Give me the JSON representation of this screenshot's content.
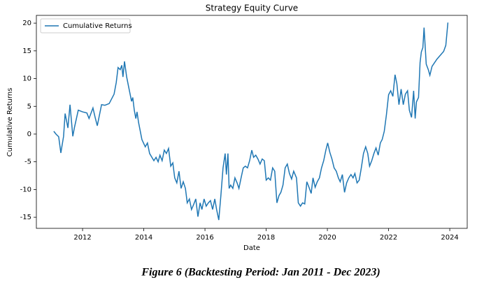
{
  "chart_data": {
    "type": "line",
    "title": "Strategy Equity Curve",
    "x_label": "Date",
    "y_label": "Cumulative Returns",
    "caption": "Figure 6 (Backtesting Period: Jan 2011 - Dec 2023)",
    "x": [
      2011.06,
      2011.13,
      2011.22,
      2011.29,
      2011.38,
      2011.43,
      2011.52,
      2011.59,
      2011.68,
      2011.73,
      2011.86,
      2012.0,
      2012.14,
      2012.21,
      2012.34,
      2012.41,
      2012.48,
      2012.62,
      2012.73,
      2012.87,
      2013.03,
      2013.1,
      2013.16,
      2013.23,
      2013.28,
      2013.32,
      2013.37,
      2013.44,
      2013.51,
      2013.6,
      2013.64,
      2013.69,
      2013.74,
      2013.78,
      2013.83,
      2013.94,
      2014.05,
      2014.12,
      2014.19,
      2014.33,
      2014.4,
      2014.47,
      2014.53,
      2014.6,
      2014.67,
      2014.74,
      2014.81,
      2014.88,
      2014.95,
      2015.01,
      2015.08,
      2015.15,
      2015.22,
      2015.29,
      2015.36,
      2015.42,
      2015.49,
      2015.56,
      2015.63,
      2015.7,
      2015.77,
      2015.84,
      2015.9,
      2015.97,
      2016.04,
      2016.11,
      2016.18,
      2016.25,
      2016.32,
      2016.38,
      2016.45,
      2016.52,
      2016.59,
      2016.66,
      2016.7,
      2016.75,
      2016.79,
      2016.84,
      2016.91,
      2016.98,
      2017.05,
      2017.11,
      2017.18,
      2017.25,
      2017.32,
      2017.39,
      2017.46,
      2017.53,
      2017.59,
      2017.66,
      2017.73,
      2017.8,
      2017.87,
      2017.94,
      2018.0,
      2018.07,
      2018.14,
      2018.21,
      2018.28,
      2018.35,
      2018.42,
      2018.48,
      2018.55,
      2018.62,
      2018.69,
      2018.76,
      2018.83,
      2018.9,
      2018.99,
      2019.05,
      2019.12,
      2019.19,
      2019.26,
      2019.33,
      2019.4,
      2019.47,
      2019.53,
      2019.6,
      2019.67,
      2019.74,
      2019.81,
      2019.88,
      2019.95,
      2020.01,
      2020.08,
      2020.15,
      2020.22,
      2020.29,
      2020.36,
      2020.42,
      2020.49,
      2020.56,
      2020.63,
      2020.7,
      2020.77,
      2020.84,
      2020.9,
      2020.97,
      2021.04,
      2021.11,
      2021.18,
      2021.25,
      2021.32,
      2021.38,
      2021.45,
      2021.52,
      2021.59,
      2021.66,
      2021.73,
      2021.79,
      2021.86,
      2021.93,
      2022.0,
      2022.07,
      2022.14,
      2022.21,
      2022.27,
      2022.34,
      2022.41,
      2022.48,
      2022.55,
      2022.62,
      2022.68,
      2022.75,
      2022.82,
      2022.87,
      2022.91,
      2022.98,
      2023.03,
      2023.07,
      2023.12,
      2023.16,
      2023.23,
      2023.3,
      2023.35,
      2023.42,
      2023.58,
      2023.8,
      2023.87,
      2023.94
    ],
    "series": [
      {
        "name": "Cumulative Returns",
        "color": "#1f77b4",
        "values": [
          0.5,
          0,
          -0.5,
          -3.4,
          -0.4,
          3.7,
          1.1,
          5.3,
          -0.4,
          1.1,
          4.3,
          4.0,
          3.8,
          2.8,
          4.7,
          3.0,
          1.5,
          5.3,
          5.2,
          5.5,
          7.2,
          9.3,
          12.0,
          11.6,
          12.4,
          10.3,
          13.1,
          10.3,
          8.4,
          5.9,
          6.6,
          4.3,
          2.8,
          4.0,
          2.1,
          -1.0,
          -2.3,
          -1.6,
          -3.5,
          -4.8,
          -4.2,
          -5.0,
          -3.8,
          -4.8,
          -2.9,
          -3.5,
          -2.6,
          -5.8,
          -5.2,
          -7.9,
          -8.8,
          -6.7,
          -9.8,
          -8.6,
          -9.8,
          -12.4,
          -11.7,
          -13.6,
          -12.7,
          -11.7,
          -14.9,
          -12.4,
          -13.6,
          -11.7,
          -13.0,
          -12.4,
          -12.0,
          -13.6,
          -11.7,
          -13.6,
          -15.5,
          -11.1,
          -6.1,
          -3.5,
          -7.3,
          -3.5,
          -9.8,
          -9.2,
          -9.8,
          -7.9,
          -8.8,
          -9.8,
          -7.9,
          -6.1,
          -5.8,
          -6.1,
          -4.8,
          -2.9,
          -4.2,
          -3.8,
          -4.5,
          -5.4,
          -4.5,
          -4.8,
          -8.3,
          -7.9,
          -8.3,
          -6.1,
          -6.7,
          -12.4,
          -11.1,
          -10.5,
          -9.2,
          -6.1,
          -5.4,
          -7.1,
          -8.1,
          -6.7,
          -7.9,
          -12.4,
          -13.0,
          -12.4,
          -12.6,
          -8.6,
          -9.6,
          -10.7,
          -7.9,
          -9.6,
          -8.6,
          -7.9,
          -6.1,
          -4.8,
          -2.9,
          -1.6,
          -3.3,
          -4.5,
          -6.1,
          -6.7,
          -7.9,
          -8.6,
          -7.3,
          -10.5,
          -8.8,
          -7.9,
          -7.3,
          -7.9,
          -7.1,
          -8.8,
          -8.3,
          -6.1,
          -3.5,
          -2.3,
          -3.5,
          -5.8,
          -4.8,
          -3.5,
          -2.5,
          -3.8,
          -1.6,
          -1.0,
          0.5,
          3.5,
          7.1,
          7.8,
          6.8,
          10.7,
          9.1,
          5.3,
          8.1,
          5.3,
          7.2,
          7.8,
          4.3,
          3.0,
          7.8,
          2.8,
          5.8,
          6.6,
          12.9,
          14.8,
          15.6,
          19.2,
          12.6,
          11.6,
          10.6,
          12.2,
          13.5,
          14.9,
          16.0,
          20.1
        ]
      }
    ],
    "xlim": [
      2010.49,
      2024.57
    ],
    "xticks": [
      2012,
      2014,
      2016,
      2018,
      2020,
      2022,
      2024
    ],
    "ylim": [
      -17,
      21.4
    ],
    "yticks": [
      -15,
      -10,
      -5,
      0,
      5,
      10,
      15,
      20
    ],
    "grid": false,
    "legend": "upper left"
  }
}
